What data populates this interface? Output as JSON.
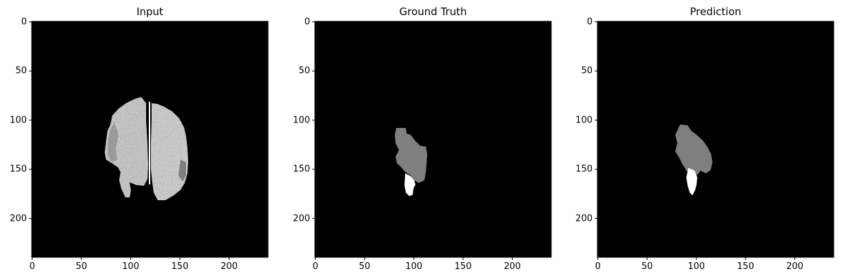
{
  "figure": {
    "panels": [
      {
        "title": "Input",
        "x_ticks": [
          "0",
          "50",
          "100",
          "150",
          "200"
        ],
        "y_ticks": [
          "0",
          "50",
          "100",
          "150",
          "200"
        ]
      },
      {
        "title": "Ground Truth",
        "x_ticks": [
          "0",
          "50",
          "100",
          "150",
          "200"
        ],
        "y_ticks": [
          "0",
          "50",
          "100",
          "150",
          "200"
        ]
      },
      {
        "title": "Prediction",
        "x_ticks": [
          "0",
          "50",
          "100",
          "150",
          "200"
        ],
        "y_ticks": [
          "0",
          "50",
          "100",
          "150",
          "200"
        ]
      }
    ],
    "colors": {
      "background": "#000000",
      "tissue": "#d0d0d0",
      "tissue_dark": "#9a9a9a",
      "tumor_core": "#7f7f7f",
      "tumor_enhancing": "#ffffff"
    }
  }
}
